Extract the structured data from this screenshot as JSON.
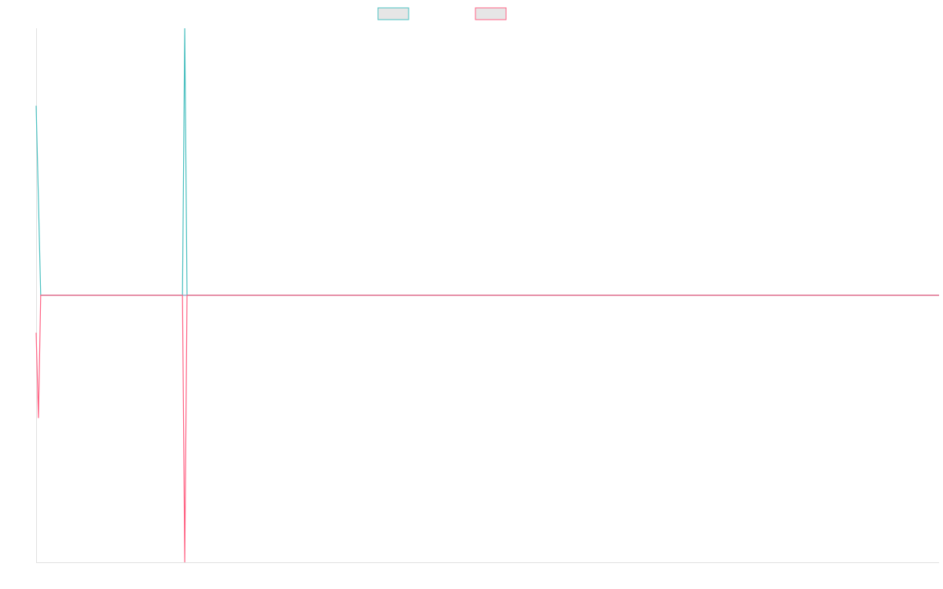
{
  "chart_data": {
    "type": "line",
    "title": "",
    "xlabel": "",
    "ylabel": "",
    "grid": false,
    "legend": "top-center",
    "colors": {
      "series_a": "#4bc0c0",
      "series_b": "#ff6384",
      "zero_line": "#8ca2c7",
      "legend_fill": "#e6e6e6",
      "axis": "#e0e0e0"
    },
    "xlim": [
      0,
      395
    ],
    "ylim": [
      -100,
      100
    ],
    "series": [
      {
        "name": "",
        "color": "#4bc0c0",
        "x": [
          0,
          2,
          64,
          65,
          66,
          395
        ],
        "y": [
          71,
          0,
          0,
          100,
          0,
          0
        ]
      },
      {
        "name": "",
        "color": "#ff6384",
        "x": [
          0,
          1,
          2,
          64,
          65,
          66,
          395
        ],
        "y": [
          -14,
          -46,
          0,
          0,
          -100,
          0,
          0
        ]
      }
    ],
    "zero_line": {
      "y": 0,
      "color": "#8ca2c7"
    }
  }
}
